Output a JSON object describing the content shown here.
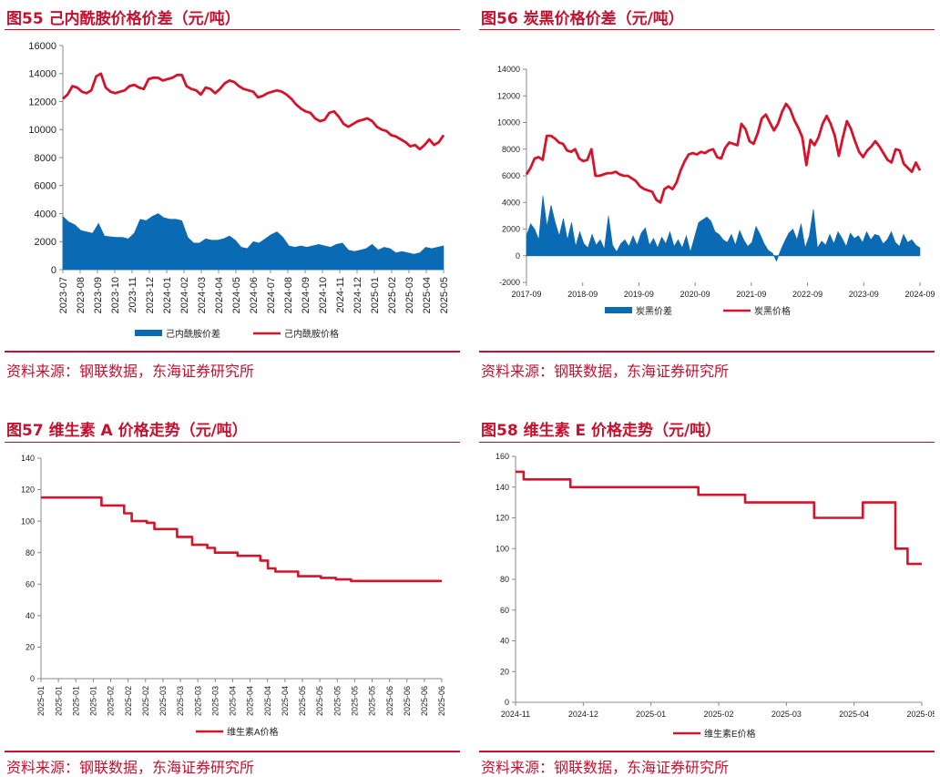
{
  "colors": {
    "red": "#d7122b",
    "blue": "#0a6ab4",
    "title_red": "#c8102e",
    "axis": "#888888"
  },
  "panels": [
    {
      "title": "图55  己内酰胺价格价差（元/吨）",
      "source": "资料来源：钢联数据，东海证券研究所",
      "chart_data": {
        "type": "area+line",
        "ylim": [
          0,
          16000
        ],
        "yticks": [
          0,
          2000,
          4000,
          6000,
          8000,
          10000,
          12000,
          14000,
          16000
        ],
        "x_labels": [
          "2023-07",
          "2023-08",
          "2023-09",
          "2023-10",
          "2023-11",
          "2023-12",
          "2024-01",
          "2024-02",
          "2024-03",
          "2024-04",
          "2024-05",
          "2024-06",
          "2024-07",
          "2024-08",
          "2024-09",
          "2024-10",
          "2024-11",
          "2024-12",
          "2025-01",
          "2025-02",
          "2025-03",
          "2025-04",
          "2025-05"
        ],
        "x_label_rotation": "vertical",
        "series": [
          {
            "name": "己内酰胺价差",
            "kind": "area",
            "values": [
              3800,
              3400,
              3200,
              2800,
              2700,
              2600,
              3300,
              2400,
              2350,
              2300,
              2300,
              2200,
              2600,
              3600,
              3500,
              3800,
              4000,
              3700,
              3600,
              3600,
              3500,
              2300,
              1900,
              1900,
              2200,
              2100,
              2100,
              2200,
              2400,
              2100,
              1600,
              1500,
              2000,
              1900,
              2200,
              2500,
              2700,
              2300,
              1700,
              1600,
              1700,
              1600,
              1700,
              1800,
              1700,
              1600,
              1800,
              1900,
              1400,
              1300,
              1400,
              1500,
              1800,
              1400,
              1600,
              1500,
              1200,
              1300,
              1200,
              1100,
              1200,
              1600,
              1500,
              1600,
              1700
            ]
          },
          {
            "name": "己内酰胺价格",
            "kind": "line",
            "values": [
              12200,
              12500,
              13100,
              13000,
              12700,
              12600,
              12800,
              13800,
              14000,
              13000,
              12700,
              12600,
              12700,
              12800,
              13100,
              13200,
              13000,
              12900,
              13600,
              13700,
              13700,
              13500,
              13600,
              13700,
              13900,
              13900,
              13100,
              12900,
              12800,
              12500,
              13000,
              12900,
              12600,
              12900,
              13300,
              13500,
              13400,
              13100,
              12900,
              12800,
              12700,
              12300,
              12400,
              12600,
              12700,
              12800,
              12700,
              12500,
              12200,
              11800,
              11500,
              11300,
              11200,
              10800,
              10600,
              10700,
              11200,
              11300,
              10900,
              10400,
              10200,
              10400,
              10600,
              10700,
              10800,
              10600,
              10200,
              10000,
              9900,
              9600,
              9500,
              9300,
              9100,
              8800,
              8900,
              8600,
              8900,
              9300,
              8900,
              9100,
              9600
            ]
          }
        ],
        "legend": [
          "己内酰胺价差",
          "己内酰胺价格"
        ]
      }
    },
    {
      "title": "图56  炭黑价格价差（元/吨）",
      "source": "资料来源：钢联数据，东海证券研究所",
      "chart_data": {
        "type": "area+line",
        "ylim": [
          -2000,
          14000
        ],
        "yticks": [
          -2000,
          0,
          2000,
          4000,
          6000,
          8000,
          10000,
          12000,
          14000
        ],
        "x_labels": [
          "2017-09",
          "2018-09",
          "2019-09",
          "2020-09",
          "2021-09",
          "2022-09",
          "2023-09",
          "2024-09"
        ],
        "x_label_rotation": "horizontal",
        "series": [
          {
            "name": "炭黑价差",
            "kind": "area",
            "values": [
              1500,
              2400,
              2000,
              1200,
              4500,
              2200,
              3800,
              2500,
              1500,
              2800,
              1200,
              2500,
              700,
              1800,
              900,
              600,
              1600,
              800,
              1200,
              500,
              3000,
              800,
              300,
              900,
              1200,
              700,
              1500,
              800,
              1700,
              2100,
              800,
              1300,
              600,
              1400,
              900,
              1800,
              700,
              1200,
              600,
              1500,
              300,
              1400,
              2500,
              2700,
              2900,
              2600,
              1800,
              1600,
              1200,
              1000,
              1600,
              800,
              1900,
              1200,
              700,
              1000,
              2200,
              1600,
              900,
              400,
              200,
              -400,
              400,
              1100,
              1700,
              2000,
              1200,
              2400,
              600,
              1500,
              3500,
              600,
              1100,
              800,
              1600,
              900,
              1800,
              1300,
              700,
              1700,
              1300,
              1500,
              1000,
              1800,
              1200,
              1600,
              1500,
              900,
              1200,
              1800,
              1000,
              700,
              1600,
              1000,
              1200,
              800,
              600
            ]
          },
          {
            "name": "炭黑价格",
            "kind": "line",
            "values": [
              6100,
              6600,
              7300,
              7400,
              7200,
              9000,
              9000,
              8800,
              8500,
              8400,
              7900,
              7800,
              8000,
              7300,
              7100,
              7200,
              8000,
              6000,
              6000,
              6100,
              6200,
              6200,
              6300,
              6100,
              6000,
              6000,
              5800,
              5600,
              5200,
              5000,
              4900,
              4800,
              4200,
              4000,
              5000,
              5200,
              5000,
              5500,
              6400,
              7100,
              7600,
              7700,
              7600,
              7800,
              7700,
              7900,
              8000,
              7400,
              7300,
              8100,
              8500,
              8400,
              8300,
              9900,
              9500,
              8600,
              8400,
              9200,
              10300,
              10600,
              10000,
              9400,
              9900,
              10800,
              11400,
              11000,
              10200,
              9600,
              8900,
              6800,
              8700,
              8300,
              8900,
              9900,
              10500,
              9900,
              9000,
              7500,
              8900,
              10100,
              9500,
              8600,
              7800,
              7400,
              7900,
              8200,
              8600,
              8200,
              7700,
              7200,
              7000,
              8000,
              7900,
              6900,
              6600,
              6300,
              7000,
              6400
            ]
          }
        ],
        "legend": [
          "炭黑价差",
          "炭黑价格"
        ]
      }
    },
    {
      "title": "图57  维生素 A 价格走势（元/吨）",
      "source": "资料来源：钢联数据，东海证券研究所",
      "chart_data": {
        "type": "line",
        "ylim": [
          0,
          140
        ],
        "yticks": [
          0,
          20,
          40,
          60,
          80,
          100,
          120,
          140
        ],
        "x_labels": [
          "2025-01",
          "2025-01",
          "2025-01",
          "2025-01",
          "2025-02",
          "2025-02",
          "2025-02",
          "2025-03",
          "2025-03",
          "2025-03",
          "2025-03",
          "2025-04",
          "2025-04",
          "2025-04",
          "2025-04",
          "2025-05",
          "2025-05",
          "2025-05",
          "2025-05",
          "2025-05",
          "2025-06",
          "2025-06",
          "2025-06",
          "2025-06"
        ],
        "x_label_rotation": "vertical",
        "series": [
          {
            "name": "维生素A价格",
            "kind": "step",
            "values": [
              115,
              115,
              115,
              115,
              115,
              115,
              115,
              115,
              110,
              110,
              110,
              105,
              100,
              100,
              99,
              95,
              95,
              95,
              90,
              90,
              85,
              85,
              83,
              80,
              80,
              80,
              78,
              78,
              78,
              75,
              70,
              68,
              68,
              68,
              65,
              65,
              65,
              64,
              64,
              63,
              63,
              62,
              62,
              62,
              62,
              62,
              62,
              62,
              62,
              62,
              62,
              62,
              62,
              62
            ]
          }
        ],
        "legend": [
          "维生素A价格"
        ]
      }
    },
    {
      "title": "图58  维生素 E 价格走势（元/吨）",
      "source": "资料来源：钢联数据，东海证券研究所",
      "chart_data": {
        "type": "line",
        "ylim": [
          0,
          160
        ],
        "yticks": [
          0,
          20,
          40,
          60,
          80,
          100,
          120,
          140,
          160
        ],
        "x_labels": [
          "2024-11",
          "2024-12",
          "2025-01",
          "2025-02",
          "2025-03",
          "2025-04",
          "2025-05"
        ],
        "x_label_rotation": "horizontal",
        "series": [
          {
            "name": "维生素E价格",
            "kind": "step",
            "points": [
              [
                0,
                150
              ],
              [
                0.015,
                150
              ],
              [
                0.02,
                145
              ],
              [
                0.13,
                145
              ],
              [
                0.135,
                140
              ],
              [
                0.16,
                140
              ],
              [
                0.45,
                135
              ],
              [
                0.56,
                135
              ],
              [
                0.565,
                130
              ],
              [
                0.73,
                130
              ],
              [
                0.735,
                120
              ],
              [
                0.84,
                120
              ],
              [
                0.855,
                130
              ],
              [
                0.92,
                130
              ],
              [
                0.935,
                100
              ],
              [
                0.96,
                100
              ],
              [
                0.965,
                90
              ],
              [
                1.0,
                90
              ]
            ]
          }
        ],
        "legend": [
          "维生素E价格"
        ]
      }
    }
  ]
}
